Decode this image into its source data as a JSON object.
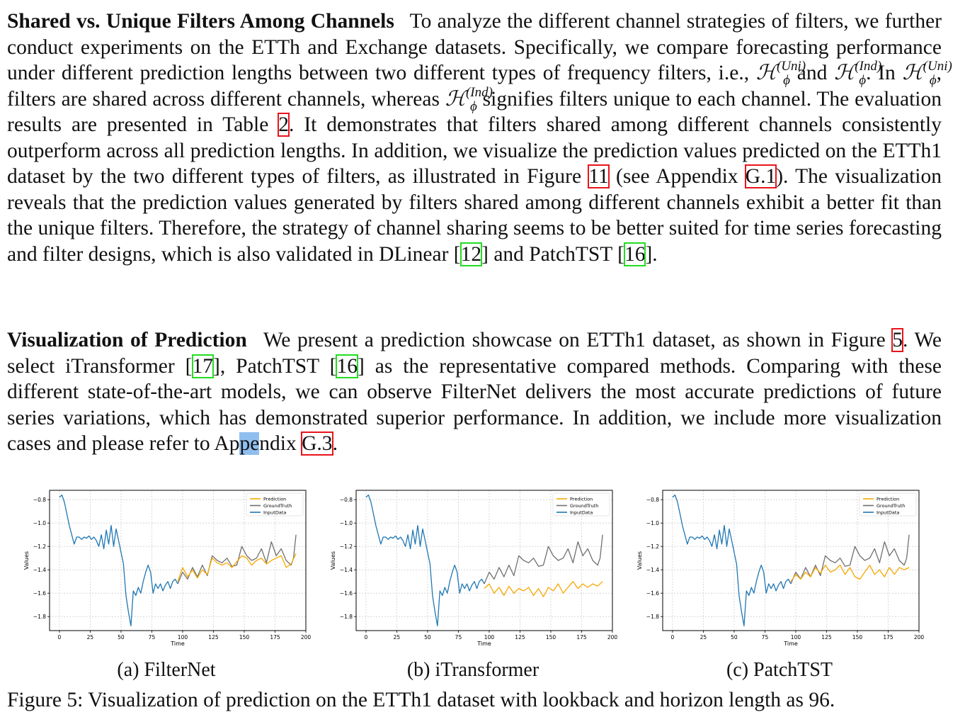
{
  "para1": {
    "heading": "Shared vs. Unique Filters Among Channels",
    "t1": "To analyze the different channel strategies of filters, we further conduct experiments on the ETTh and Exchange datasets. Specifically, we compare forecasting performance under different prediction lengths between two different types of frequency filters, i.e.,",
    "sym_H": "ℋ",
    "sym_phi": "ϕ",
    "sup_uni": "(Uni)",
    "sup_ind": "(Ind)",
    "t_and": "and",
    "t_in": ". In",
    "t2": ", filters are shared across different channels, whereas",
    "t3": "signifies filters unique to each channel. The evaluation results are presented in Table",
    "ref_table": "2",
    "t4": ". It demonstrates that filters shared among different channels consistently outperform across all prediction lengths. In addition, we visualize the prediction values predicted on the ETTh1 dataset by the two different types of filters, as illustrated in Figure",
    "ref_fig11": "11",
    "t5": "(see Appendix",
    "ref_g1": "G.1",
    "t6": "). The visualization reveals that the prediction values generated by filters shared among different channels exhibit a better fit than the unique filters. Therefore, the strategy of channel sharing seems to be better suited for time series forecasting and filter designs, which is also validated in DLinear [",
    "ref_12": "12",
    "t7": "] and PatchTST [",
    "ref_16": "16",
    "t8": "]."
  },
  "para2": {
    "heading": "Visualization of Prediction",
    "t1": "We present a prediction showcase on ETTh1 dataset, as shown in Figure",
    "ref_fig5": "5",
    "t2": ". We select iTransformer [",
    "ref_17": "17",
    "t3": "], PatchTST [",
    "ref_16": "16",
    "t4": "] as the representative compared methods. Comparing with these different state-of-the-art models, we can observe FilterNet delivers the most accurate predictions of future series variations, which has demonstrated superior performance. In addition, we include more visualization cases and please refer to Ap",
    "t_sel": "pe",
    "t5": "ndix",
    "ref_g3": "G.3",
    "t6": "."
  },
  "figure_caption": "Figure 5: Visualization of prediction on the ETTh1 dataset with lookback and horizon length as 96.",
  "colors": {
    "prediction": "#f5a800",
    "ground_truth": "#707070",
    "input": "#1f77b4",
    "ref_red": "#e8141b",
    "ref_green": "#22dd22"
  },
  "chart_data": [
    {
      "type": "line",
      "caption": "(a) FilterNet",
      "xlabel": "Time",
      "ylabel": "Values",
      "xlim": [
        -8,
        200
      ],
      "ylim": [
        -1.92,
        -0.72
      ],
      "xticks": [
        0,
        25,
        50,
        75,
        100,
        125,
        150,
        175,
        200
      ],
      "yticks": [
        -0.8,
        -1.0,
        -1.2,
        -1.4,
        -1.6,
        -1.8
      ],
      "ytick_labels": [
        "−0.8",
        "−1.0",
        "−1.2",
        "−1.4",
        "−1.6",
        "−1.8"
      ],
      "grid": true,
      "legend": "top-right",
      "legend_labels": [
        "Prediction",
        "GroundTruth",
        "InputData"
      ],
      "input": {
        "x": [
          0,
          2,
          4,
          6,
          8,
          10,
          12,
          14,
          16,
          18,
          20,
          22,
          24,
          26,
          28,
          30,
          32,
          34,
          36,
          38,
          40,
          42,
          44,
          46,
          48,
          50,
          52,
          54,
          56,
          58,
          60,
          62,
          64,
          66,
          68,
          70,
          72,
          74,
          76,
          78,
          80,
          82,
          84,
          86,
          88,
          90,
          92,
          94,
          96
        ],
        "y": [
          -0.78,
          -0.76,
          -0.82,
          -0.92,
          -1.02,
          -1.1,
          -1.18,
          -1.12,
          -1.12,
          -1.14,
          -1.12,
          -1.13,
          -1.11,
          -1.14,
          -1.12,
          -1.15,
          -1.2,
          -1.1,
          -1.22,
          -1.06,
          -1.18,
          -1.02,
          -1.2,
          -1.05,
          -1.15,
          -1.25,
          -1.35,
          -1.62,
          -1.76,
          -1.88,
          -1.58,
          -1.62,
          -1.55,
          -1.6,
          -1.5,
          -1.42,
          -1.36,
          -1.42,
          -1.6,
          -1.52,
          -1.56,
          -1.52,
          -1.58,
          -1.53,
          -1.5,
          -1.56,
          -1.5,
          -1.48,
          -1.52
        ]
      },
      "ground_truth": {
        "x": [
          96,
          100,
          104,
          108,
          112,
          116,
          120,
          124,
          128,
          132,
          136,
          140,
          144,
          148,
          152,
          156,
          160,
          164,
          168,
          172,
          176,
          180,
          184,
          188,
          190,
          192
        ],
        "y": [
          -1.52,
          -1.42,
          -1.48,
          -1.38,
          -1.46,
          -1.36,
          -1.45,
          -1.28,
          -1.32,
          -1.34,
          -1.3,
          -1.37,
          -1.36,
          -1.2,
          -1.28,
          -1.32,
          -1.3,
          -1.22,
          -1.34,
          -1.16,
          -1.28,
          -1.22,
          -1.32,
          -1.36,
          -1.3,
          -1.1
        ]
      },
      "prediction": {
        "x": [
          96,
          100,
          104,
          108,
          112,
          116,
          120,
          124,
          128,
          132,
          136,
          140,
          144,
          148,
          152,
          156,
          160,
          164,
          168,
          172,
          176,
          180,
          184,
          188,
          192
        ],
        "y": [
          -1.5,
          -1.38,
          -1.46,
          -1.4,
          -1.47,
          -1.4,
          -1.44,
          -1.3,
          -1.34,
          -1.36,
          -1.34,
          -1.38,
          -1.33,
          -1.28,
          -1.3,
          -1.36,
          -1.32,
          -1.3,
          -1.35,
          -1.32,
          -1.3,
          -1.28,
          -1.38,
          -1.35,
          -1.26
        ]
      }
    },
    {
      "type": "line",
      "caption": "(b) iTransformer",
      "xlabel": "Time",
      "ylabel": "Values",
      "xlim": [
        -8,
        200
      ],
      "ylim": [
        -1.92,
        -0.72
      ],
      "xticks": [
        0,
        25,
        50,
        75,
        100,
        125,
        150,
        175,
        200
      ],
      "yticks": [
        -0.8,
        -1.0,
        -1.2,
        -1.4,
        -1.6,
        -1.8
      ],
      "ytick_labels": [
        "−0.8",
        "−1.0",
        "−1.2",
        "−1.4",
        "−1.6",
        "−1.8"
      ],
      "grid": true,
      "legend": "top-right",
      "legend_labels": [
        "Prediction",
        "GroundTruth",
        "InputData"
      ],
      "input": {
        "x": [
          0,
          2,
          4,
          6,
          8,
          10,
          12,
          14,
          16,
          18,
          20,
          22,
          24,
          26,
          28,
          30,
          32,
          34,
          36,
          38,
          40,
          42,
          44,
          46,
          48,
          50,
          52,
          54,
          56,
          58,
          60,
          62,
          64,
          66,
          68,
          70,
          72,
          74,
          76,
          78,
          80,
          82,
          84,
          86,
          88,
          90,
          92,
          94,
          96
        ],
        "y": [
          -0.78,
          -0.76,
          -0.82,
          -0.92,
          -1.02,
          -1.1,
          -1.18,
          -1.12,
          -1.12,
          -1.14,
          -1.12,
          -1.13,
          -1.11,
          -1.14,
          -1.12,
          -1.15,
          -1.2,
          -1.1,
          -1.22,
          -1.06,
          -1.18,
          -1.02,
          -1.2,
          -1.05,
          -1.15,
          -1.25,
          -1.35,
          -1.62,
          -1.76,
          -1.88,
          -1.58,
          -1.62,
          -1.55,
          -1.6,
          -1.5,
          -1.42,
          -1.36,
          -1.42,
          -1.6,
          -1.52,
          -1.56,
          -1.52,
          -1.58,
          -1.53,
          -1.5,
          -1.56,
          -1.5,
          -1.48,
          -1.52
        ]
      },
      "ground_truth": {
        "x": [
          96,
          100,
          104,
          108,
          112,
          116,
          120,
          124,
          128,
          132,
          136,
          140,
          144,
          148,
          152,
          156,
          160,
          164,
          168,
          172,
          176,
          180,
          184,
          188,
          190,
          192
        ],
        "y": [
          -1.52,
          -1.42,
          -1.48,
          -1.38,
          -1.46,
          -1.36,
          -1.45,
          -1.28,
          -1.32,
          -1.34,
          -1.3,
          -1.37,
          -1.36,
          -1.2,
          -1.28,
          -1.32,
          -1.3,
          -1.22,
          -1.34,
          -1.16,
          -1.28,
          -1.22,
          -1.32,
          -1.36,
          -1.3,
          -1.1
        ]
      },
      "prediction": {
        "x": [
          96,
          100,
          104,
          108,
          112,
          116,
          120,
          124,
          128,
          132,
          136,
          140,
          144,
          148,
          152,
          156,
          160,
          164,
          168,
          172,
          176,
          180,
          184,
          188,
          192
        ],
        "y": [
          -1.56,
          -1.52,
          -1.6,
          -1.55,
          -1.62,
          -1.54,
          -1.6,
          -1.56,
          -1.58,
          -1.55,
          -1.62,
          -1.56,
          -1.63,
          -1.55,
          -1.58,
          -1.52,
          -1.6,
          -1.55,
          -1.5,
          -1.56,
          -1.52,
          -1.55,
          -1.52,
          -1.54,
          -1.5
        ]
      }
    },
    {
      "type": "line",
      "caption": "(c) PatchTST",
      "xlabel": "Time",
      "ylabel": "Values",
      "xlim": [
        -8,
        200
      ],
      "ylim": [
        -1.92,
        -0.72
      ],
      "xticks": [
        0,
        25,
        50,
        75,
        100,
        125,
        150,
        175,
        200
      ],
      "yticks": [
        -0.8,
        -1.0,
        -1.2,
        -1.4,
        -1.6,
        -1.8
      ],
      "ytick_labels": [
        "−0.8",
        "−1.0",
        "−1.2",
        "−1.4",
        "−1.6",
        "−1.8"
      ],
      "grid": true,
      "legend": "top-right",
      "legend_labels": [
        "Prediction",
        "GroundTruth",
        "InputData"
      ],
      "input": {
        "x": [
          0,
          2,
          4,
          6,
          8,
          10,
          12,
          14,
          16,
          18,
          20,
          22,
          24,
          26,
          28,
          30,
          32,
          34,
          36,
          38,
          40,
          42,
          44,
          46,
          48,
          50,
          52,
          54,
          56,
          58,
          60,
          62,
          64,
          66,
          68,
          70,
          72,
          74,
          76,
          78,
          80,
          82,
          84,
          86,
          88,
          90,
          92,
          94,
          96
        ],
        "y": [
          -0.78,
          -0.76,
          -0.82,
          -0.92,
          -1.02,
          -1.1,
          -1.18,
          -1.12,
          -1.12,
          -1.14,
          -1.12,
          -1.13,
          -1.11,
          -1.14,
          -1.12,
          -1.15,
          -1.2,
          -1.1,
          -1.22,
          -1.06,
          -1.18,
          -1.02,
          -1.2,
          -1.05,
          -1.15,
          -1.25,
          -1.35,
          -1.62,
          -1.76,
          -1.88,
          -1.58,
          -1.62,
          -1.55,
          -1.6,
          -1.5,
          -1.42,
          -1.36,
          -1.42,
          -1.6,
          -1.52,
          -1.56,
          -1.52,
          -1.58,
          -1.53,
          -1.5,
          -1.56,
          -1.5,
          -1.48,
          -1.52
        ]
      },
      "ground_truth": {
        "x": [
          96,
          100,
          104,
          108,
          112,
          116,
          120,
          124,
          128,
          132,
          136,
          140,
          144,
          148,
          152,
          156,
          160,
          164,
          168,
          172,
          176,
          180,
          184,
          188,
          190,
          192
        ],
        "y": [
          -1.52,
          -1.42,
          -1.48,
          -1.38,
          -1.46,
          -1.36,
          -1.45,
          -1.28,
          -1.32,
          -1.34,
          -1.3,
          -1.37,
          -1.36,
          -1.2,
          -1.28,
          -1.32,
          -1.3,
          -1.22,
          -1.34,
          -1.16,
          -1.28,
          -1.22,
          -1.32,
          -1.36,
          -1.3,
          -1.1
        ]
      },
      "prediction": {
        "x": [
          96,
          100,
          104,
          108,
          112,
          116,
          120,
          124,
          128,
          132,
          136,
          140,
          144,
          148,
          152,
          156,
          160,
          164,
          168,
          172,
          176,
          180,
          184,
          188,
          192
        ],
        "y": [
          -1.5,
          -1.44,
          -1.48,
          -1.42,
          -1.46,
          -1.38,
          -1.43,
          -1.36,
          -1.42,
          -1.4,
          -1.36,
          -1.44,
          -1.38,
          -1.46,
          -1.48,
          -1.42,
          -1.36,
          -1.44,
          -1.4,
          -1.46,
          -1.38,
          -1.44,
          -1.38,
          -1.4,
          -1.38
        ]
      }
    }
  ]
}
